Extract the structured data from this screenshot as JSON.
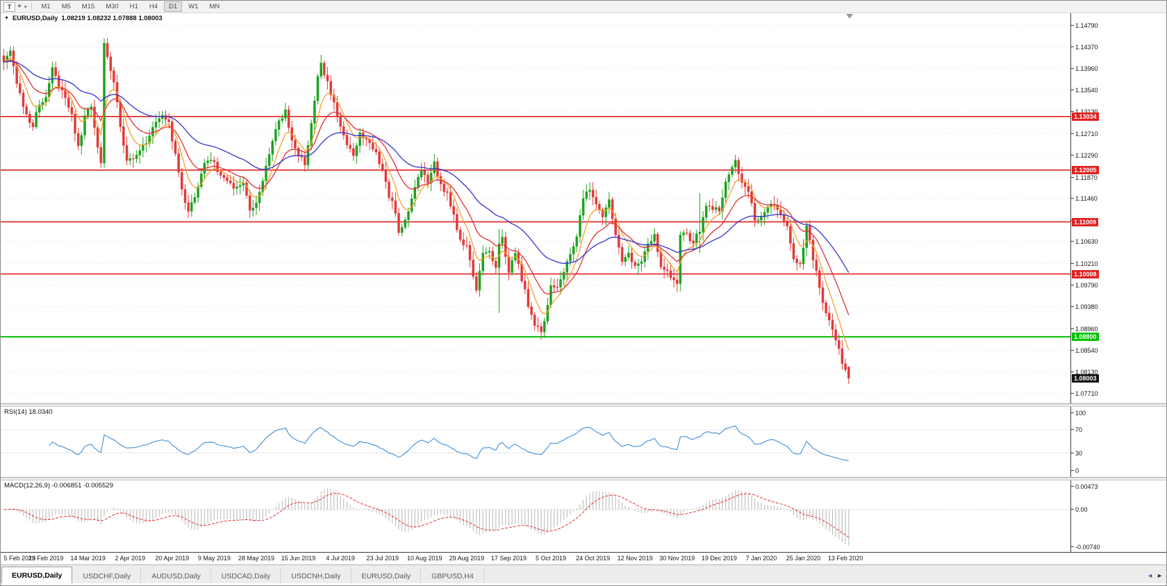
{
  "toolbar": {
    "t_button": "T",
    "cursor_tool": "+",
    "timeframes": [
      "M1",
      "M5",
      "M15",
      "M30",
      "H1",
      "H4",
      "D1",
      "W1",
      "MN"
    ],
    "active_timeframe": "D1"
  },
  "chart_data": {
    "type": "candlestick",
    "symbol": "EURUSD",
    "timeframe": "Daily",
    "title_symbol": "EURUSD,Daily",
    "title_ohlc": "1.08219 1.08232 1.07888 1.08003",
    "last_candle": {
      "o": 1.08219,
      "h": 1.08232,
      "l": 1.07888,
      "c": 1.08003
    },
    "bars": 262,
    "bar_step": 4.66,
    "price_view": {
      "max": 1.1502,
      "min": 1.0752
    },
    "price_ticks": [
      "1.14790",
      "1.14370",
      "1.13960",
      "1.13540",
      "1.13130",
      "1.12710",
      "1.12290",
      "1.11870",
      "1.11460",
      "1.11040",
      "1.10630",
      "1.10210",
      "1.09790",
      "1.09380",
      "1.08960",
      "1.08540",
      "1.08130",
      "1.07710"
    ],
    "levels": [
      {
        "price": 1.13034,
        "label": "1.13034",
        "color": "#e02020",
        "width": 1.6,
        "type": "resistance"
      },
      {
        "price": 1.12005,
        "label": "1.12005",
        "color": "#e02020",
        "width": 1.6,
        "type": "resistance"
      },
      {
        "price": 1.11009,
        "label": "1.11009",
        "color": "#e02020",
        "width": 1.6,
        "type": "resistance"
      },
      {
        "price": 1.10008,
        "label": "1.10008",
        "color": "#e02020",
        "width": 1.6,
        "type": "resistance"
      },
      {
        "price": 1.088,
        "label": "1.08800",
        "color": "#00c000",
        "width": 2,
        "type": "support"
      }
    ],
    "current_price": {
      "value": 1.08003,
      "label": "1.08003",
      "box_color": "#111111"
    },
    "colors": {
      "bull": "#1ea31e",
      "bear": "#e23a3a",
      "grid": "#e7e7e7"
    },
    "moving_averages": [
      {
        "name": "fast-ma",
        "period": 7,
        "color": "#f2a12e"
      },
      {
        "name": "mid-ma",
        "period": 16,
        "color": "#e03030"
      },
      {
        "name": "slow-ma",
        "period": 40,
        "color": "#3333cc"
      }
    ],
    "anchors": [
      [
        0,
        1.1408
      ],
      [
        2,
        1.1432
      ],
      [
        4,
        1.137
      ],
      [
        6,
        1.1318
      ],
      [
        9,
        1.1282
      ],
      [
        11,
        1.133
      ],
      [
        13,
        1.1342
      ],
      [
        15,
        1.1396
      ],
      [
        17,
        1.136
      ],
      [
        19,
        1.1338
      ],
      [
        21,
        1.1306
      ],
      [
        23,
        1.1242
      ],
      [
        25,
        1.13
      ],
      [
        27,
        1.1326
      ],
      [
        29,
        1.1246
      ],
      [
        30,
        1.1212
      ],
      [
        31,
        1.144
      ],
      [
        32,
        1.1416
      ],
      [
        34,
        1.1372
      ],
      [
        36,
        1.1282
      ],
      [
        38,
        1.1222
      ],
      [
        41,
        1.123
      ],
      [
        44,
        1.1256
      ],
      [
        47,
        1.1292
      ],
      [
        49,
        1.1308
      ],
      [
        51,
        1.1288
      ],
      [
        53,
        1.1232
      ],
      [
        55,
        1.1162
      ],
      [
        57,
        1.1118
      ],
      [
        59,
        1.1152
      ],
      [
        62,
        1.1216
      ],
      [
        64,
        1.1222
      ],
      [
        66,
        1.1202
      ],
      [
        69,
        1.1182
      ],
      [
        71,
        1.116
      ],
      [
        74,
        1.1178
      ],
      [
        76,
        1.1128
      ],
      [
        78,
        1.1136
      ],
      [
        80,
        1.1182
      ],
      [
        83,
        1.1252
      ],
      [
        85,
        1.1298
      ],
      [
        87,
        1.1312
      ],
      [
        89,
        1.1256
      ],
      [
        91,
        1.1232
      ],
      [
        93,
        1.1212
      ],
      [
        95,
        1.1292
      ],
      [
        97,
        1.1382
      ],
      [
        98,
        1.1402
      ],
      [
        100,
        1.1368
      ],
      [
        102,
        1.1332
      ],
      [
        104,
        1.1286
      ],
      [
        106,
        1.1252
      ],
      [
        108,
        1.1226
      ],
      [
        110,
        1.1272
      ],
      [
        113,
        1.1256
      ],
      [
        115,
        1.1232
      ],
      [
        117,
        1.1202
      ],
      [
        119,
        1.1152
      ],
      [
        121,
        1.1122
      ],
      [
        122,
        1.1076
      ],
      [
        123,
        1.1088
      ],
      [
        125,
        1.1122
      ],
      [
        127,
        1.1172
      ],
      [
        129,
        1.1202
      ],
      [
        131,
        1.1176
      ],
      [
        133,
        1.1212
      ],
      [
        135,
        1.1172
      ],
      [
        137,
        1.1156
      ],
      [
        139,
        1.1112
      ],
      [
        141,
        1.1062
      ],
      [
        143,
        1.1056
      ],
      [
        145,
        1.0996
      ],
      [
        146,
        1.0972
      ],
      [
        148,
        1.1036
      ],
      [
        150,
        1.1042
      ],
      [
        152,
        1.1012
      ],
      [
        153,
        1.1062
      ],
      [
        154,
        1.1072
      ],
      [
        156,
        1.1002
      ],
      [
        158,
        1.1042
      ],
      [
        160,
        1.0992
      ],
      [
        162,
        1.0942
      ],
      [
        164,
        1.0902
      ],
      [
        166,
        1.0892
      ],
      [
        168,
        1.0936
      ],
      [
        169,
        1.0982
      ],
      [
        171,
        1.0972
      ],
      [
        173,
        1.1002
      ],
      [
        175,
        1.1042
      ],
      [
        177,
        1.1076
      ],
      [
        179,
        1.1142
      ],
      [
        181,
        1.1166
      ],
      [
        183,
        1.1132
      ],
      [
        185,
        1.1106
      ],
      [
        187,
        1.1142
      ],
      [
        189,
        1.1076
      ],
      [
        191,
        1.1022
      ],
      [
        193,
        1.1036
      ],
      [
        195,
        1.1012
      ],
      [
        197,
        1.1026
      ],
      [
        199,
        1.1062
      ],
      [
        201,
        1.1076
      ],
      [
        203,
        1.1016
      ],
      [
        205,
        1.1006
      ],
      [
        207,
        1.0986
      ],
      [
        208,
        1.0982
      ],
      [
        209,
        1.1078
      ],
      [
        211,
        1.1076
      ],
      [
        213,
        1.1062
      ],
      [
        215,
        1.1086
      ],
      [
        217,
        1.1132
      ],
      [
        219,
        1.1126
      ],
      [
        221,
        1.1122
      ],
      [
        223,
        1.1176
      ],
      [
        225,
        1.1202
      ],
      [
        226,
        1.1216
      ],
      [
        228,
        1.1172
      ],
      [
        230,
        1.1162
      ],
      [
        232,
        1.1106
      ],
      [
        234,
        1.1112
      ],
      [
        236,
        1.1128
      ],
      [
        238,
        1.1136
      ],
      [
        240,
        1.111
      ],
      [
        242,
        1.1094
      ],
      [
        244,
        1.1026
      ],
      [
        246,
        1.1022
      ],
      [
        248,
        1.109
      ],
      [
        249,
        1.1062
      ],
      [
        251,
        1.1002
      ],
      [
        253,
        1.0946
      ],
      [
        255,
        1.0912
      ],
      [
        257,
        1.0872
      ],
      [
        259,
        1.0832
      ],
      [
        261,
        1.0802
      ]
    ],
    "wick_overrides": [
      [
        31,
        null,
        1.145
      ],
      [
        153,
        1.0926,
        1.1087
      ],
      [
        166,
        1.0879,
        null
      ],
      [
        215,
        1.1041,
        1.1156
      ]
    ],
    "date_labels": [
      "5 Feb 2019",
      "23 Feb 2019",
      "14 Mar 2019",
      "2 Apr 2019",
      "20 Apr 2019",
      "9 May 2019",
      "28 May 2019",
      "15 Jun 2019",
      "4 Jul 2019",
      "23 Jul 2019",
      "10 Aug 2019",
      "29 Aug 2019",
      "17 Sep 2019",
      "5 Oct 2019",
      "24 Oct 2019",
      "12 Nov 2019",
      "30 Nov 2019",
      "19 Dec 2019",
      "7 Jan 2020",
      "25 Jan 2020",
      "13 Feb 2020"
    ],
    "date_tick_every_bars": 13,
    "indicators": {
      "rsi": {
        "label": "RSI(14)",
        "value": "18.0340",
        "period": 14,
        "color": "#3e8ed8",
        "axis_ticks": [
          "100",
          "70",
          "30",
          "0"
        ],
        "guide_levels": [
          70,
          30
        ]
      },
      "macd": {
        "label": "MACD(12,26,9)",
        "values": "-0.006851 -0.005529",
        "fast": 12,
        "slow": 26,
        "signal": 9,
        "hist_color": "#b6b6b6",
        "signal_color": "#e03030",
        "axis_ticks": [
          "0.00473",
          "0.00",
          "-0.00740"
        ],
        "range": {
          "max": 0.00473,
          "min": -0.0074
        }
      }
    }
  },
  "tabs": [
    {
      "label": "EURUSD,Daily",
      "active": true
    },
    {
      "label": "USDCHF,Daily",
      "active": false
    },
    {
      "label": "AUDUSD,Daily",
      "active": false
    },
    {
      "label": "USDCAD,Daily",
      "active": false
    },
    {
      "label": "USDCNH,Daily",
      "active": false
    },
    {
      "label": "EURUSD,Daily",
      "active": false
    },
    {
      "label": "GBPUSD,H4",
      "active": false
    }
  ],
  "tab_arrows": {
    "left": "◄",
    "right": "►"
  }
}
